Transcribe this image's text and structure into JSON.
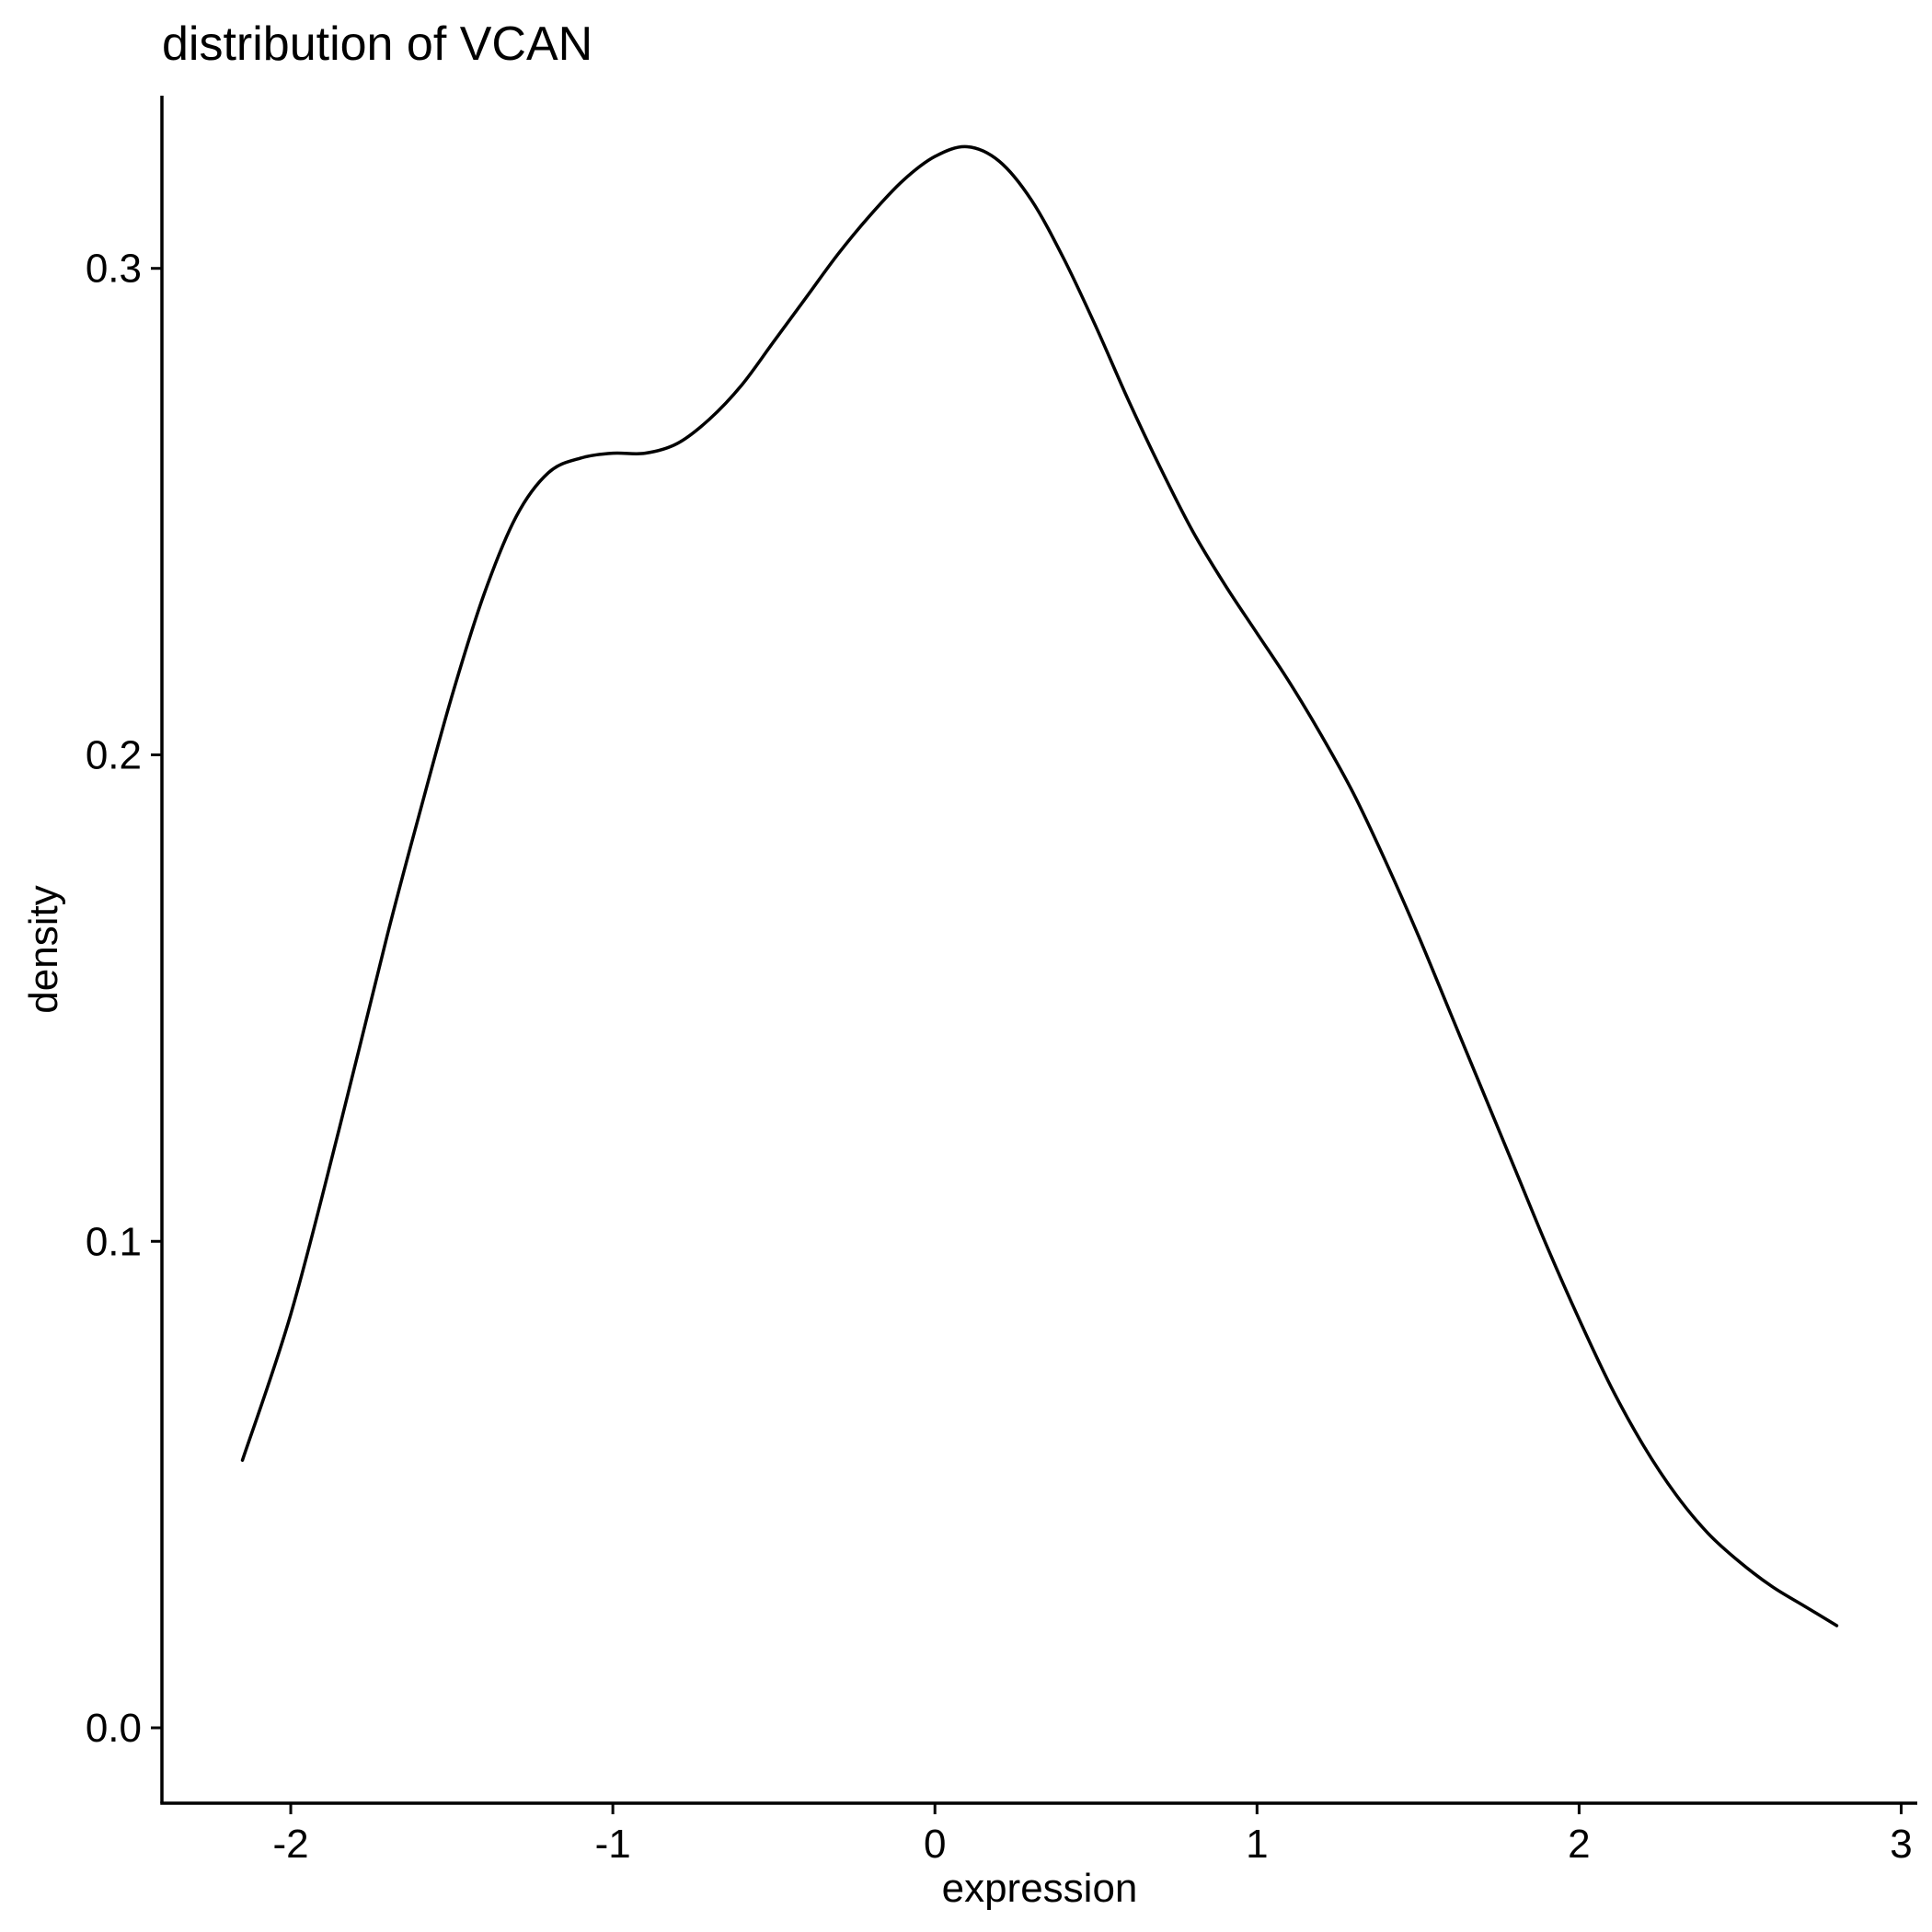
{
  "chart_data": {
    "type": "line",
    "title": "distribution of VCAN",
    "xlabel": "expression",
    "ylabel": "density",
    "xlim": [
      -2.4,
      3.05
    ],
    "ylim": [
      -0.0155,
      0.3355
    ],
    "x_ticks": [
      -2,
      -1,
      0,
      1,
      2,
      3
    ],
    "x_tick_labels": [
      "-2",
      "-1",
      "0",
      "1",
      "2",
      "3"
    ],
    "y_ticks": [
      0.0,
      0.1,
      0.2,
      0.3
    ],
    "y_tick_labels": [
      "0.0",
      "0.1",
      "0.2",
      "0.3"
    ],
    "grid": false,
    "legend": "none",
    "series": [
      {
        "color": "#000000",
        "x": [
          -2.15,
          -2.0,
          -1.85,
          -1.7,
          -1.6,
          -1.5,
          -1.4,
          -1.3,
          -1.2,
          -1.1,
          -1.0,
          -0.9,
          -0.8,
          -0.7,
          -0.6,
          -0.5,
          -0.4,
          -0.3,
          -0.2,
          -0.1,
          0.0,
          0.1,
          0.2,
          0.3,
          0.4,
          0.5,
          0.6,
          0.7,
          0.8,
          0.9,
          1.0,
          1.1,
          1.2,
          1.3,
          1.4,
          1.5,
          1.6,
          1.7,
          1.8,
          1.9,
          2.0,
          2.1,
          2.2,
          2.3,
          2.4,
          2.5,
          2.6,
          2.7,
          2.8
        ],
        "values": [
          0.055,
          0.085,
          0.123,
          0.163,
          0.188,
          0.212,
          0.233,
          0.249,
          0.258,
          0.261,
          0.262,
          0.262,
          0.264,
          0.269,
          0.276,
          0.285,
          0.294,
          0.303,
          0.311,
          0.318,
          0.323,
          0.325,
          0.322,
          0.314,
          0.302,
          0.288,
          0.273,
          0.259,
          0.246,
          0.235,
          0.225,
          0.215,
          0.204,
          0.192,
          0.178,
          0.163,
          0.147,
          0.131,
          0.115,
          0.099,
          0.084,
          0.07,
          0.058,
          0.048,
          0.04,
          0.034,
          0.029,
          0.025,
          0.021
        ]
      }
    ]
  }
}
